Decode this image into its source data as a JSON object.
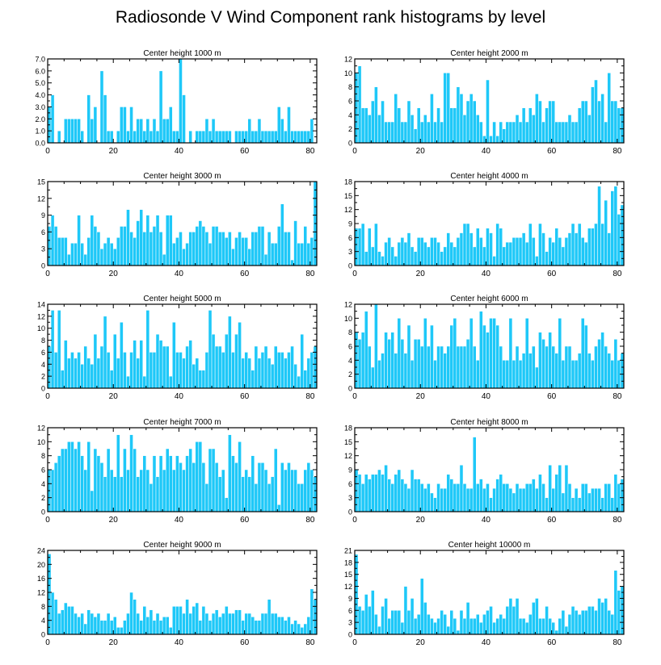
{
  "title": "Radiosonde V Wind Component rank histograms by level",
  "colors": {
    "bar": "#1ec8f8",
    "bar_edge": "#ffffff",
    "axis": "#000000"
  },
  "chart_data": [
    {
      "type": "bar",
      "title": "Center height 1000 m",
      "xlabel": "",
      "ylabel": "",
      "x_start": 0,
      "xlim": [
        0,
        82
      ],
      "xticks": [
        0,
        20,
        40,
        60,
        80
      ],
      "ylim": [
        0,
        7
      ],
      "yticks": [
        0,
        1,
        2,
        3,
        4,
        5,
        6,
        7
      ],
      "ytick_decimals": 1,
      "values": [
        3,
        4,
        0,
        1,
        0,
        2,
        2,
        2,
        2,
        2,
        1,
        0,
        4,
        2,
        3,
        0,
        6,
        4,
        1,
        1,
        0,
        1,
        3,
        3,
        1,
        3,
        1,
        2,
        2,
        1,
        2,
        1,
        2,
        1,
        6,
        2,
        2,
        3,
        1,
        1,
        7,
        4,
        0,
        1,
        0,
        1,
        1,
        1,
        2,
        1,
        2,
        1,
        1,
        1,
        1,
        1,
        0,
        1,
        1,
        1,
        1,
        2,
        1,
        1,
        2,
        1,
        1,
        1,
        1,
        1,
        3,
        2,
        1,
        3,
        1,
        1,
        1,
        1,
        1,
        1,
        2
      ]
    },
    {
      "type": "bar",
      "title": "Center height 2000 m",
      "xlabel": "",
      "ylabel": "",
      "x_start": 0,
      "xlim": [
        0,
        82
      ],
      "xticks": [
        0,
        20,
        40,
        60,
        80
      ],
      "ylim": [
        0,
        12
      ],
      "yticks": [
        0,
        2,
        4,
        6,
        8,
        10,
        12
      ],
      "ytick_decimals": 0,
      "values": [
        10,
        11,
        5,
        5,
        4,
        6,
        8,
        4,
        6,
        3,
        3,
        3,
        7,
        5,
        3,
        3,
        6,
        4,
        2,
        5,
        3,
        4,
        3,
        7,
        3,
        5,
        3,
        10,
        10,
        5,
        5,
        8,
        7,
        4,
        6,
        7,
        6,
        4,
        3,
        1,
        9,
        1,
        3,
        1,
        3,
        2,
        3,
        3,
        3,
        4,
        3,
        5,
        3,
        5,
        4,
        7,
        6,
        3,
        5,
        6,
        6,
        3,
        3,
        3,
        3,
        4,
        3,
        3,
        5,
        6,
        6,
        4,
        8,
        9,
        6,
        7,
        3,
        10,
        6,
        6,
        5,
        5
      ]
    },
    {
      "type": "bar",
      "title": "Center height 3000 m",
      "xlabel": "",
      "ylabel": "",
      "x_start": 0,
      "xlim": [
        0,
        82
      ],
      "xticks": [
        0,
        20,
        40,
        60,
        80
      ],
      "ylim": [
        0,
        15
      ],
      "yticks": [
        0,
        3,
        6,
        9,
        12,
        15
      ],
      "ytick_decimals": 0,
      "values": [
        7,
        9,
        7,
        5,
        5,
        5,
        2,
        4,
        4,
        9,
        4,
        2,
        5,
        9,
        7,
        6,
        3,
        4,
        5,
        4,
        3,
        5,
        7,
        7,
        10,
        6,
        5,
        8,
        10,
        6,
        9,
        6,
        7,
        9,
        6,
        2,
        9,
        9,
        4,
        5,
        6,
        3,
        4,
        6,
        6,
        7,
        8,
        7,
        6,
        4,
        7,
        7,
        6,
        6,
        5,
        6,
        3,
        5,
        6,
        5,
        5,
        3,
        6,
        6,
        7,
        7,
        2,
        6,
        4,
        4,
        7,
        11,
        6,
        6,
        1,
        8,
        4,
        4,
        7,
        4,
        5,
        15
      ]
    },
    {
      "type": "bar",
      "title": "Center height 4000 m",
      "xlabel": "",
      "ylabel": "",
      "x_start": 0,
      "xlim": [
        0,
        82
      ],
      "xticks": [
        0,
        20,
        40,
        60,
        80
      ],
      "ylim": [
        0,
        18
      ],
      "yticks": [
        0,
        3,
        6,
        9,
        12,
        15,
        18
      ],
      "ytick_decimals": 0,
      "values": [
        8,
        8,
        9,
        3,
        8,
        4,
        9,
        3,
        2,
        5,
        6,
        4,
        2,
        5,
        6,
        5,
        7,
        4,
        3,
        6,
        6,
        5,
        4,
        6,
        6,
        5,
        3,
        4,
        7,
        5,
        4,
        6,
        7,
        9,
        9,
        7,
        4,
        8,
        6,
        4,
        8,
        7,
        2,
        9,
        8,
        4,
        5,
        5,
        6,
        6,
        6,
        7,
        5,
        9,
        6,
        2,
        9,
        7,
        3,
        6,
        5,
        8,
        6,
        4,
        6,
        7,
        9,
        7,
        9,
        6,
        5,
        8,
        8,
        9,
        17,
        9,
        14,
        7,
        16,
        17,
        11,
        13
      ]
    },
    {
      "type": "bar",
      "title": "Center height 5000 m",
      "xlabel": "",
      "ylabel": "",
      "x_start": 0,
      "xlim": [
        0,
        82
      ],
      "xticks": [
        0,
        20,
        40,
        60,
        80
      ],
      "ylim": [
        0,
        14
      ],
      "yticks": [
        0,
        2,
        4,
        6,
        8,
        10,
        12,
        14
      ],
      "ytick_decimals": 0,
      "values": [
        7,
        13,
        6,
        13,
        3,
        8,
        5,
        6,
        5,
        6,
        4,
        7,
        5,
        4,
        9,
        5,
        7,
        12,
        6,
        3,
        9,
        5,
        11,
        6,
        2,
        6,
        8,
        5,
        8,
        2,
        13,
        6,
        6,
        9,
        8,
        7,
        7,
        2,
        11,
        6,
        6,
        5,
        7,
        8,
        4,
        5,
        3,
        3,
        6,
        13,
        9,
        7,
        7,
        6,
        9,
        12,
        6,
        9,
        11,
        5,
        6,
        5,
        3,
        7,
        5,
        6,
        7,
        5,
        4,
        7,
        6,
        6,
        5,
        6,
        7,
        4,
        2,
        9,
        3,
        5,
        6,
        7
      ]
    },
    {
      "type": "bar",
      "title": "Center height 6000 m",
      "xlabel": "",
      "ylabel": "",
      "x_start": 0,
      "xlim": [
        0,
        82
      ],
      "xticks": [
        0,
        20,
        40,
        60,
        80
      ],
      "ylim": [
        0,
        12
      ],
      "yticks": [
        0,
        2,
        4,
        6,
        8,
        10,
        12
      ],
      "ytick_decimals": 0,
      "values": [
        8,
        7,
        8,
        11,
        6,
        3,
        12,
        4,
        5,
        8,
        7,
        8,
        5,
        10,
        7,
        5,
        9,
        4,
        7,
        7,
        6,
        10,
        6,
        9,
        4,
        6,
        6,
        5,
        6,
        9,
        10,
        6,
        6,
        6,
        7,
        10,
        6,
        4,
        11,
        9,
        8,
        10,
        10,
        9,
        6,
        4,
        4,
        10,
        4,
        6,
        4,
        5,
        10,
        5,
        6,
        3,
        8,
        7,
        6,
        8,
        6,
        5,
        10,
        4,
        6,
        6,
        4,
        4,
        5,
        10,
        9,
        5,
        4,
        6,
        7,
        8,
        6,
        5,
        4,
        7,
        4,
        5
      ]
    },
    {
      "type": "bar",
      "title": "Center height 7000 m",
      "xlabel": "",
      "ylabel": "",
      "x_start": 0,
      "xlim": [
        0,
        82
      ],
      "xticks": [
        0,
        20,
        40,
        60,
        80
      ],
      "ylim": [
        0,
        12
      ],
      "yticks": [
        0,
        2,
        4,
        6,
        8,
        10,
        12
      ],
      "ytick_decimals": 0,
      "values": [
        6,
        6,
        7,
        8,
        9,
        9,
        10,
        10,
        9,
        10,
        8,
        6,
        10,
        3,
        9,
        8,
        7,
        5,
        9,
        6,
        5,
        11,
        5,
        9,
        6,
        11,
        9,
        5,
        6,
        8,
        6,
        4,
        8,
        5,
        8,
        6,
        9,
        8,
        6,
        8,
        7,
        6,
        8,
        9,
        7,
        10,
        10,
        7,
        4,
        9,
        9,
        7,
        5,
        6,
        2,
        11,
        8,
        7,
        10,
        5,
        6,
        5,
        8,
        4,
        7,
        7,
        6,
        4,
        5,
        9,
        1,
        7,
        6,
        7,
        6,
        6,
        4,
        4,
        6,
        7,
        6,
        5
      ]
    },
    {
      "type": "bar",
      "title": "Center height 8000 m",
      "xlabel": "",
      "ylabel": "",
      "x_start": 0,
      "xlim": [
        0,
        82
      ],
      "xticks": [
        0,
        20,
        40,
        60,
        80
      ],
      "ylim": [
        0,
        18
      ],
      "yticks": [
        0,
        3,
        6,
        9,
        12,
        15,
        18
      ],
      "ytick_decimals": 0,
      "values": [
        9,
        8,
        6,
        8,
        7,
        8,
        8,
        9,
        8,
        10,
        7,
        6,
        8,
        9,
        7,
        6,
        5,
        9,
        7,
        7,
        6,
        5,
        6,
        4,
        3,
        6,
        5,
        5,
        8,
        7,
        6,
        6,
        10,
        6,
        5,
        5,
        16,
        6,
        7,
        5,
        6,
        3,
        5,
        7,
        8,
        6,
        6,
        5,
        4,
        6,
        5,
        5,
        6,
        6,
        7,
        5,
        8,
        6,
        3,
        10,
        5,
        8,
        10,
        4,
        10,
        6,
        3,
        5,
        3,
        6,
        6,
        4,
        5,
        5,
        5,
        3,
        6,
        6,
        3,
        8,
        6,
        7
      ]
    },
    {
      "type": "bar",
      "title": "Center height 9000 m",
      "xlabel": "",
      "ylabel": "",
      "x_start": 0,
      "xlim": [
        0,
        82
      ],
      "xticks": [
        0,
        20,
        40,
        60,
        80
      ],
      "ylim": [
        0,
        24
      ],
      "yticks": [
        0,
        4,
        8,
        12,
        16,
        20,
        24
      ],
      "ytick_decimals": 0,
      "values": [
        23,
        12,
        10,
        6,
        7,
        9,
        8,
        8,
        6,
        5,
        6,
        3,
        7,
        6,
        5,
        6,
        4,
        4,
        6,
        4,
        5,
        2,
        2,
        4,
        6,
        12,
        10,
        6,
        4,
        8,
        5,
        7,
        4,
        6,
        4,
        5,
        5,
        2,
        8,
        8,
        8,
        6,
        10,
        6,
        8,
        9,
        4,
        8,
        6,
        4,
        6,
        7,
        5,
        6,
        8,
        6,
        6,
        7,
        7,
        4,
        6,
        6,
        5,
        4,
        4,
        6,
        6,
        10,
        6,
        6,
        5,
        5,
        4,
        5,
        3,
        4,
        3,
        2,
        3,
        5,
        13,
        10
      ]
    },
    {
      "type": "bar",
      "title": "Center height 10000 m",
      "xlabel": "",
      "ylabel": "",
      "x_start": 0,
      "xlim": [
        0,
        82
      ],
      "xticks": [
        0,
        20,
        40,
        60,
        80
      ],
      "ylim": [
        0,
        21
      ],
      "yticks": [
        0,
        3,
        6,
        9,
        12,
        15,
        18,
        21
      ],
      "ytick_decimals": 0,
      "values": [
        20,
        7,
        6,
        10,
        7,
        11,
        5,
        2,
        7,
        9,
        4,
        6,
        6,
        6,
        3,
        12,
        6,
        9,
        4,
        5,
        14,
        8,
        5,
        4,
        3,
        4,
        6,
        5,
        2,
        6,
        4,
        1,
        6,
        4,
        8,
        4,
        4,
        5,
        3,
        5,
        6,
        7,
        3,
        4,
        5,
        4,
        7,
        9,
        7,
        9,
        4,
        4,
        3,
        5,
        8,
        9,
        4,
        4,
        7,
        4,
        3,
        1,
        4,
        6,
        2,
        5,
        7,
        6,
        5,
        6,
        6,
        7,
        7,
        6,
        9,
        8,
        9,
        6,
        5,
        16,
        11,
        12
      ]
    }
  ]
}
